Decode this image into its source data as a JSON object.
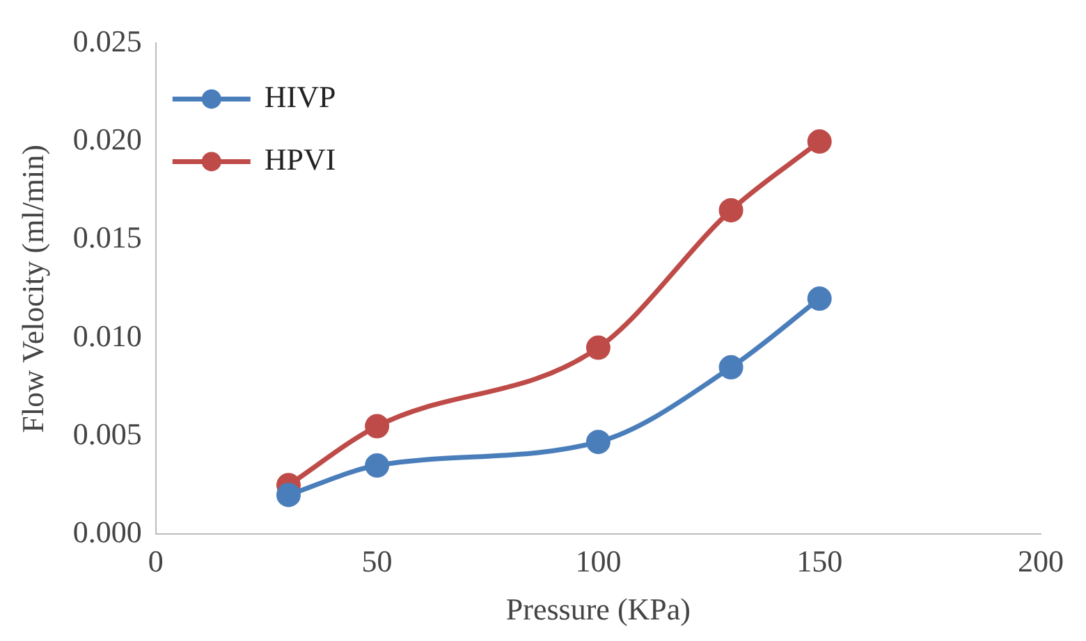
{
  "chart_data": {
    "type": "line",
    "xlabel": "Pressure (KPa)",
    "ylabel": "Flow Velocity (ml/min)",
    "x": [
      30,
      50,
      100,
      130,
      150
    ],
    "series": [
      {
        "name": "HIVP",
        "color": "#4a7ebb",
        "values": [
          0.002,
          0.0035,
          0.0047,
          0.0085,
          0.012
        ]
      },
      {
        "name": "HPVI",
        "color": "#be4b48",
        "values": [
          0.0025,
          0.0055,
          0.0095,
          0.0165,
          0.02
        ]
      }
    ],
    "xlim": [
      0,
      200
    ],
    "xticks": [
      0,
      50,
      100,
      150,
      200
    ],
    "ylim": [
      0,
      0.025
    ],
    "yticks": [
      {
        "value": 0,
        "label": "0.000"
      },
      {
        "value": 0.005,
        "label": "0.005"
      },
      {
        "value": 0.01,
        "label": "0.010"
      },
      {
        "value": 0.015,
        "label": "0.015"
      },
      {
        "value": 0.02,
        "label": "0.020"
      },
      {
        "value": 0.025,
        "label": "0.025"
      }
    ],
    "grid": false,
    "legend": "top left",
    "marker": "circle"
  }
}
